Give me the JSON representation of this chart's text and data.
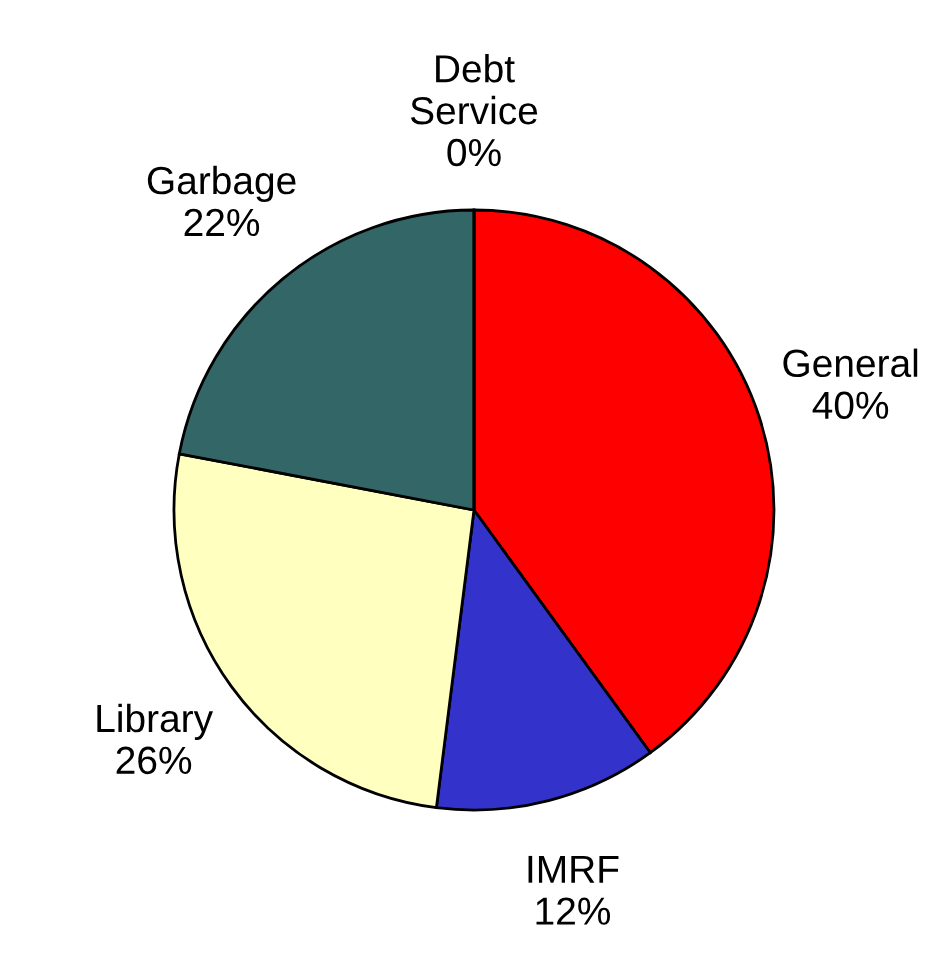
{
  "chart_data": {
    "type": "pie",
    "categories": [
      "General",
      "IMRF",
      "Library",
      "Garbage",
      "Debt\nService"
    ],
    "values": [
      40,
      12,
      26,
      22,
      0
    ],
    "value_labels": [
      "40%",
      "12%",
      "26%",
      "22%",
      "0%"
    ],
    "colors": [
      "#ff0000",
      "#3333cc",
      "#ffffc0",
      "#336666",
      "#888888"
    ],
    "legend": false
  }
}
